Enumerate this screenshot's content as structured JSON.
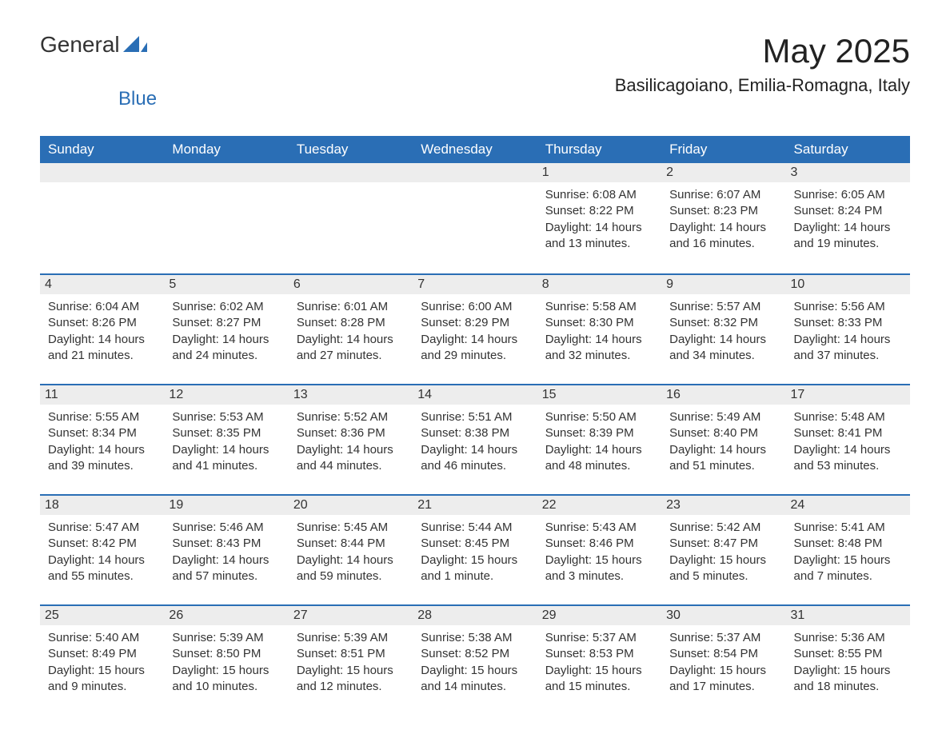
{
  "logo": {
    "text_main": "General",
    "text_sub": "Blue",
    "icon_color": "#2a6eb5",
    "main_color": "#333333",
    "sub_color": "#2a6eb5"
  },
  "title": "May 2025",
  "location": "Basilicagoiano, Emilia-Romagna, Italy",
  "colors": {
    "header_bg": "#2a6eb5",
    "header_text": "#ffffff",
    "daynum_bg": "#ededed",
    "daynum_border": "#2a6eb5",
    "text": "#333333",
    "background": "#ffffff"
  },
  "typography": {
    "title_fontsize": 42,
    "location_fontsize": 22,
    "dayheader_fontsize": 17,
    "daynum_fontsize": 16,
    "body_fontsize": 15,
    "font_family": "Arial"
  },
  "day_headers": [
    "Sunday",
    "Monday",
    "Tuesday",
    "Wednesday",
    "Thursday",
    "Friday",
    "Saturday"
  ],
  "weeks": [
    [
      {
        "day": "",
        "sunrise": "",
        "sunset": "",
        "daylight": ""
      },
      {
        "day": "",
        "sunrise": "",
        "sunset": "",
        "daylight": ""
      },
      {
        "day": "",
        "sunrise": "",
        "sunset": "",
        "daylight": ""
      },
      {
        "day": "",
        "sunrise": "",
        "sunset": "",
        "daylight": ""
      },
      {
        "day": "1",
        "sunrise": "Sunrise: 6:08 AM",
        "sunset": "Sunset: 8:22 PM",
        "daylight": "Daylight: 14 hours and 13 minutes."
      },
      {
        "day": "2",
        "sunrise": "Sunrise: 6:07 AM",
        "sunset": "Sunset: 8:23 PM",
        "daylight": "Daylight: 14 hours and 16 minutes."
      },
      {
        "day": "3",
        "sunrise": "Sunrise: 6:05 AM",
        "sunset": "Sunset: 8:24 PM",
        "daylight": "Daylight: 14 hours and 19 minutes."
      }
    ],
    [
      {
        "day": "4",
        "sunrise": "Sunrise: 6:04 AM",
        "sunset": "Sunset: 8:26 PM",
        "daylight": "Daylight: 14 hours and 21 minutes."
      },
      {
        "day": "5",
        "sunrise": "Sunrise: 6:02 AM",
        "sunset": "Sunset: 8:27 PM",
        "daylight": "Daylight: 14 hours and 24 minutes."
      },
      {
        "day": "6",
        "sunrise": "Sunrise: 6:01 AM",
        "sunset": "Sunset: 8:28 PM",
        "daylight": "Daylight: 14 hours and 27 minutes."
      },
      {
        "day": "7",
        "sunrise": "Sunrise: 6:00 AM",
        "sunset": "Sunset: 8:29 PM",
        "daylight": "Daylight: 14 hours and 29 minutes."
      },
      {
        "day": "8",
        "sunrise": "Sunrise: 5:58 AM",
        "sunset": "Sunset: 8:30 PM",
        "daylight": "Daylight: 14 hours and 32 minutes."
      },
      {
        "day": "9",
        "sunrise": "Sunrise: 5:57 AM",
        "sunset": "Sunset: 8:32 PM",
        "daylight": "Daylight: 14 hours and 34 minutes."
      },
      {
        "day": "10",
        "sunrise": "Sunrise: 5:56 AM",
        "sunset": "Sunset: 8:33 PM",
        "daylight": "Daylight: 14 hours and 37 minutes."
      }
    ],
    [
      {
        "day": "11",
        "sunrise": "Sunrise: 5:55 AM",
        "sunset": "Sunset: 8:34 PM",
        "daylight": "Daylight: 14 hours and 39 minutes."
      },
      {
        "day": "12",
        "sunrise": "Sunrise: 5:53 AM",
        "sunset": "Sunset: 8:35 PM",
        "daylight": "Daylight: 14 hours and 41 minutes."
      },
      {
        "day": "13",
        "sunrise": "Sunrise: 5:52 AM",
        "sunset": "Sunset: 8:36 PM",
        "daylight": "Daylight: 14 hours and 44 minutes."
      },
      {
        "day": "14",
        "sunrise": "Sunrise: 5:51 AM",
        "sunset": "Sunset: 8:38 PM",
        "daylight": "Daylight: 14 hours and 46 minutes."
      },
      {
        "day": "15",
        "sunrise": "Sunrise: 5:50 AM",
        "sunset": "Sunset: 8:39 PM",
        "daylight": "Daylight: 14 hours and 48 minutes."
      },
      {
        "day": "16",
        "sunrise": "Sunrise: 5:49 AM",
        "sunset": "Sunset: 8:40 PM",
        "daylight": "Daylight: 14 hours and 51 minutes."
      },
      {
        "day": "17",
        "sunrise": "Sunrise: 5:48 AM",
        "sunset": "Sunset: 8:41 PM",
        "daylight": "Daylight: 14 hours and 53 minutes."
      }
    ],
    [
      {
        "day": "18",
        "sunrise": "Sunrise: 5:47 AM",
        "sunset": "Sunset: 8:42 PM",
        "daylight": "Daylight: 14 hours and 55 minutes."
      },
      {
        "day": "19",
        "sunrise": "Sunrise: 5:46 AM",
        "sunset": "Sunset: 8:43 PM",
        "daylight": "Daylight: 14 hours and 57 minutes."
      },
      {
        "day": "20",
        "sunrise": "Sunrise: 5:45 AM",
        "sunset": "Sunset: 8:44 PM",
        "daylight": "Daylight: 14 hours and 59 minutes."
      },
      {
        "day": "21",
        "sunrise": "Sunrise: 5:44 AM",
        "sunset": "Sunset: 8:45 PM",
        "daylight": "Daylight: 15 hours and 1 minute."
      },
      {
        "day": "22",
        "sunrise": "Sunrise: 5:43 AM",
        "sunset": "Sunset: 8:46 PM",
        "daylight": "Daylight: 15 hours and 3 minutes."
      },
      {
        "day": "23",
        "sunrise": "Sunrise: 5:42 AM",
        "sunset": "Sunset: 8:47 PM",
        "daylight": "Daylight: 15 hours and 5 minutes."
      },
      {
        "day": "24",
        "sunrise": "Sunrise: 5:41 AM",
        "sunset": "Sunset: 8:48 PM",
        "daylight": "Daylight: 15 hours and 7 minutes."
      }
    ],
    [
      {
        "day": "25",
        "sunrise": "Sunrise: 5:40 AM",
        "sunset": "Sunset: 8:49 PM",
        "daylight": "Daylight: 15 hours and 9 minutes."
      },
      {
        "day": "26",
        "sunrise": "Sunrise: 5:39 AM",
        "sunset": "Sunset: 8:50 PM",
        "daylight": "Daylight: 15 hours and 10 minutes."
      },
      {
        "day": "27",
        "sunrise": "Sunrise: 5:39 AM",
        "sunset": "Sunset: 8:51 PM",
        "daylight": "Daylight: 15 hours and 12 minutes."
      },
      {
        "day": "28",
        "sunrise": "Sunrise: 5:38 AM",
        "sunset": "Sunset: 8:52 PM",
        "daylight": "Daylight: 15 hours and 14 minutes."
      },
      {
        "day": "29",
        "sunrise": "Sunrise: 5:37 AM",
        "sunset": "Sunset: 8:53 PM",
        "daylight": "Daylight: 15 hours and 15 minutes."
      },
      {
        "day": "30",
        "sunrise": "Sunrise: 5:37 AM",
        "sunset": "Sunset: 8:54 PM",
        "daylight": "Daylight: 15 hours and 17 minutes."
      },
      {
        "day": "31",
        "sunrise": "Sunrise: 5:36 AM",
        "sunset": "Sunset: 8:55 PM",
        "daylight": "Daylight: 15 hours and 18 minutes."
      }
    ]
  ]
}
